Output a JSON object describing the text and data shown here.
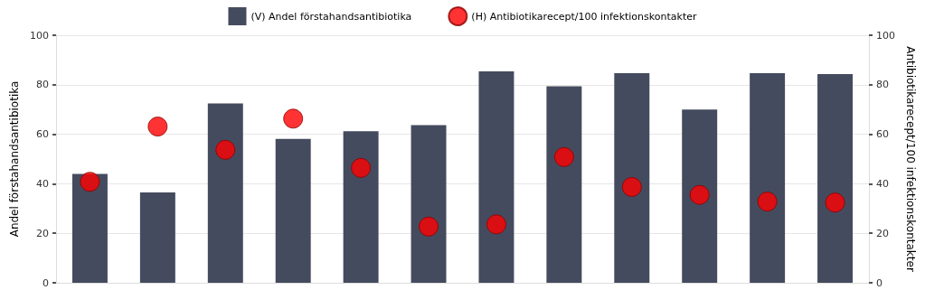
{
  "chart_data": {
    "type": "bar",
    "categories": [
      null,
      null,
      null,
      null,
      null,
      null,
      null,
      null,
      null,
      null,
      null,
      null
    ],
    "series": [
      {
        "name": "(V) Andel förstahandsantibiotika",
        "color": "#454b5e",
        "values": [
          44,
          36.5,
          72.4,
          58.1,
          61.2,
          63.7,
          85.4,
          79.4,
          84.7,
          70,
          84.7,
          84.3
        ]
      },
      {
        "name": "(H) Antibiotikarecept/100 infektionskontakter",
        "type": "scatter",
        "axis": "y2",
        "color": "#ff0000",
        "values": [
          40.8,
          63.1,
          53.7,
          66.3,
          46.4,
          22.7,
          23.6,
          50.8,
          38.7,
          35.5,
          32.8,
          32.4
        ]
      }
    ],
    "ylabel": "Andel förstahandsantibiotika",
    "y2label": "Antibiotikarecept/100 infektionskontakter",
    "ylim": [
      0,
      100
    ],
    "yticks": [
      0,
      20,
      40,
      60,
      80,
      100
    ],
    "y2lim": [
      0,
      100
    ],
    "y2ticks": [
      0,
      20,
      40,
      60,
      80,
      100
    ],
    "grid": "y",
    "legend": "top",
    "marker": "circle"
  }
}
